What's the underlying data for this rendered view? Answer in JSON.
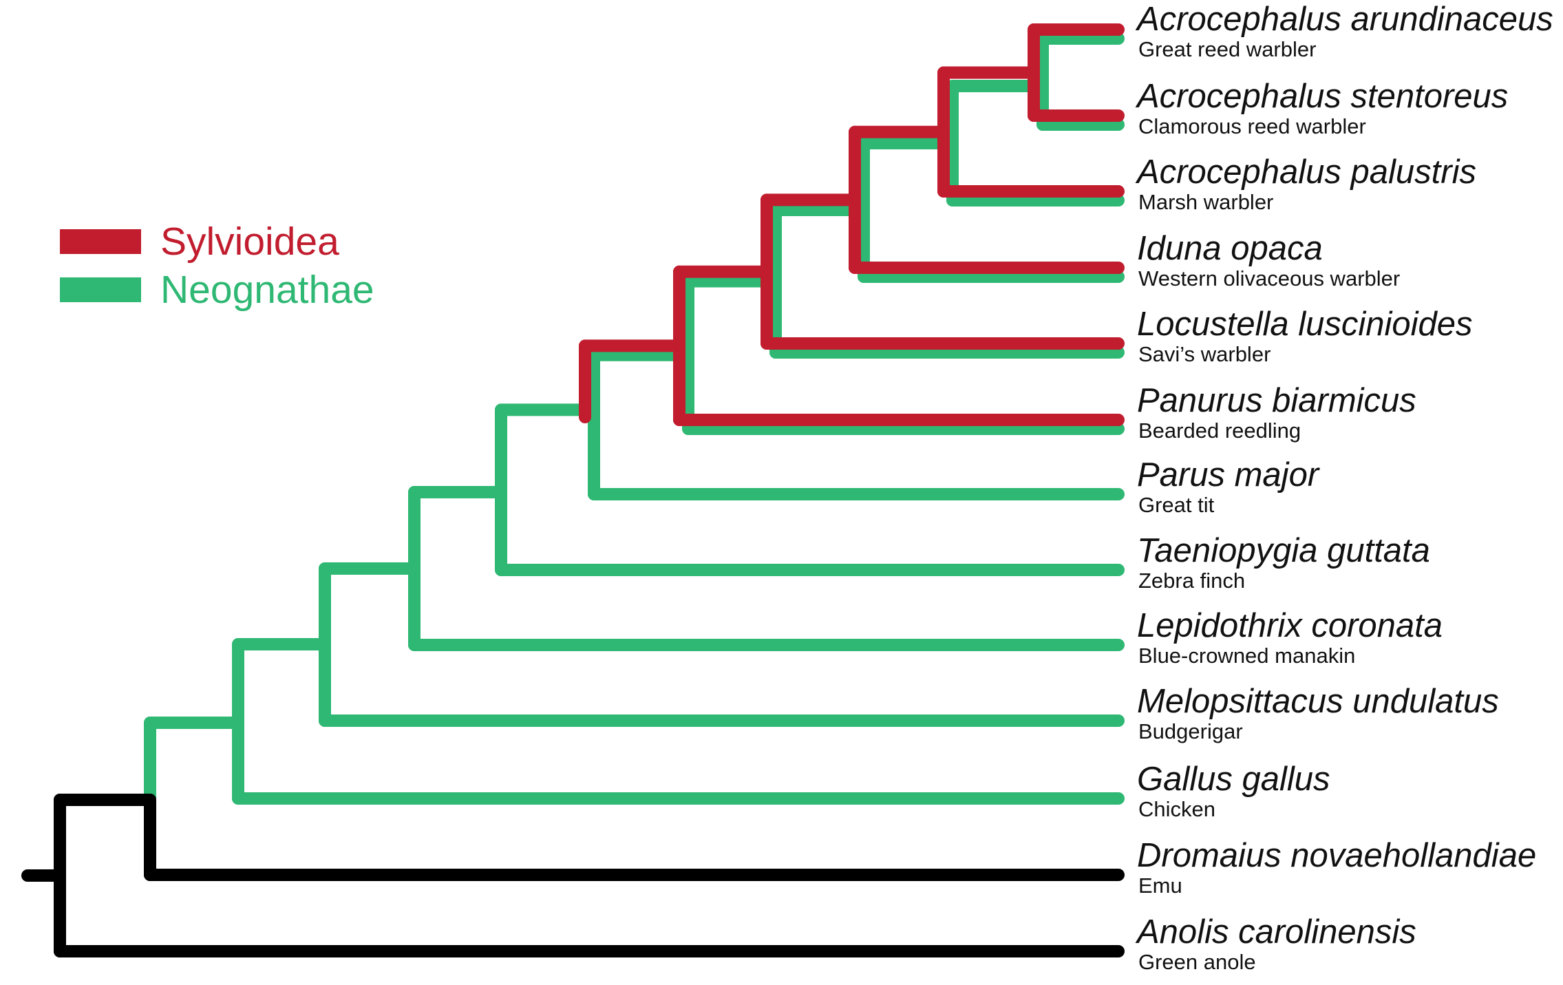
{
  "legend": [
    {
      "label": "Sylvioidea",
      "color": "#c11d2e"
    },
    {
      "label": "Neognathae",
      "color": "#2eb873"
    }
  ],
  "colors": {
    "sylvioidea": "#c11d2e",
    "neognathae": "#2eb873",
    "outgroup": "#000000"
  },
  "taxa": [
    {
      "species": "Acrocephalus arundinaceus",
      "common": "Great reed warbler"
    },
    {
      "species": "Acrocephalus stentoreus",
      "common": "Clamorous reed warbler"
    },
    {
      "species": "Acrocephalus palustris",
      "common": "Marsh warbler"
    },
    {
      "species": "Iduna opaca",
      "common": "Western olivaceous warbler"
    },
    {
      "species": "Locustella luscinioides",
      "common": "Savi’s warbler"
    },
    {
      "species": "Panurus biarmicus",
      "common": "Bearded reedling"
    },
    {
      "species": "Parus major",
      "common": "Great tit"
    },
    {
      "species": "Taeniopygia guttata",
      "common": "Zebra finch"
    },
    {
      "species": "Lepidothrix coronata",
      "common": "Blue-crowned manakin"
    },
    {
      "species": "Melopsittacus undulatus",
      "common": "Budgerigar"
    },
    {
      "species": "Gallus gallus",
      "common": "Chicken"
    },
    {
      "species": "Dromaius novaehollandiae",
      "common": "Emu"
    },
    {
      "species": "Anolis carolinensis",
      "common": "Green anole"
    }
  ]
}
